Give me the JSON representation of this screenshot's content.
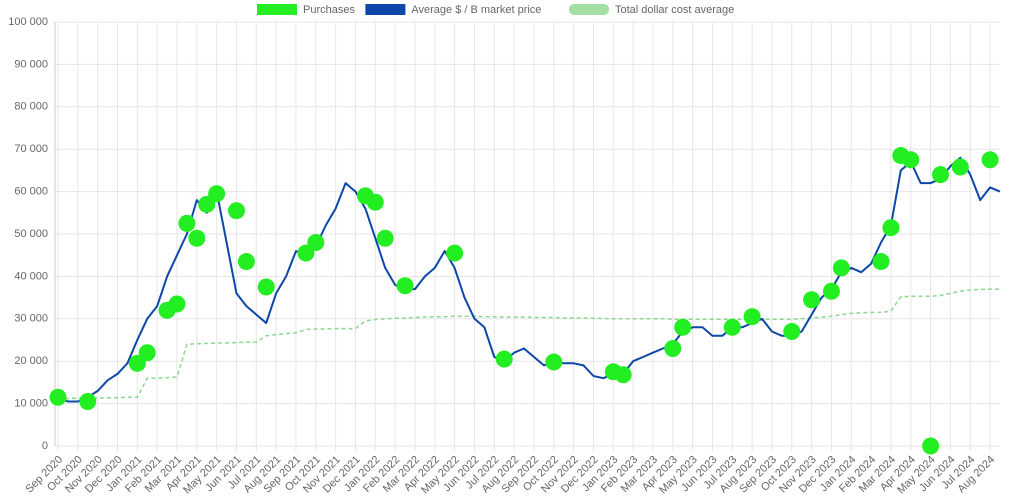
{
  "chart_data": {
    "type": "line",
    "categories": [
      "Sep 2020",
      null,
      "Oct 2020",
      null,
      "Nov 2020",
      null,
      "Dec 2020",
      null,
      "Jan 2021",
      null,
      "Feb 2021",
      null,
      "Mar 2021",
      null,
      "Apr 2021",
      null,
      "May 2021",
      null,
      "Jun 2021",
      null,
      "Jul 2021",
      null,
      "Aug 2021",
      null,
      "Sep 2021",
      null,
      "Oct 2021",
      null,
      "Nov 2021",
      null,
      "Dec 2021",
      null,
      "Jan 2022",
      null,
      "Feb 2022",
      null,
      "Mar 2022",
      null,
      "Apr 2022",
      null,
      "May 2022",
      null,
      "Jun 2022",
      null,
      "Jul 2022",
      null,
      "Aug 2022",
      null,
      "Sep 2022",
      null,
      "Oct 2022",
      null,
      "Nov 2022",
      null,
      "Dec 2022",
      null,
      "Jan 2023",
      null,
      "Feb 2023",
      null,
      "Mar 2023",
      null,
      "Apr 2023",
      null,
      "May 2023",
      null,
      "Jun 2023",
      null,
      "Jul 2023",
      null,
      "Aug 2023",
      null,
      "Sep 2023",
      null,
      "Oct 2023",
      null,
      "Nov 2023",
      null,
      "Dec 2023",
      null,
      "Jan 2024",
      null,
      "Feb 2024",
      null,
      "Mar 2024",
      null,
      "Apr 2024",
      null,
      "May 2024",
      null,
      "Jun 2024",
      null,
      "Jul 2024",
      null,
      "Aug 2024",
      null
    ],
    "series": [
      {
        "name": "Purchases",
        "type": "scatter",
        "color": "#22ee22",
        "values": [
          11500,
          null,
          null,
          10500,
          null,
          null,
          null,
          null,
          19500,
          22000,
          null,
          32000,
          33500,
          52500,
          49000,
          57000,
          59500,
          null,
          55500,
          43500,
          null,
          37500,
          null,
          null,
          null,
          45500,
          48000,
          null,
          null,
          null,
          null,
          59000,
          57500,
          49000,
          null,
          37800,
          null,
          null,
          null,
          null,
          45500,
          null,
          null,
          null,
          null,
          20500,
          null,
          null,
          null,
          null,
          19800,
          null,
          null,
          null,
          null,
          null,
          17500,
          16800,
          null,
          null,
          null,
          null,
          23000,
          28000,
          null,
          null,
          null,
          null,
          28000,
          null,
          30500,
          null,
          null,
          null,
          27000,
          null,
          34500,
          null,
          36500,
          42000,
          null,
          null,
          null,
          43500,
          51500,
          68500,
          67500,
          null,
          0,
          64000,
          null,
          65800,
          null,
          null,
          67500,
          null
        ]
      },
      {
        "name": "Average $ / B market price",
        "type": "line",
        "color": "#0d47a8",
        "values": [
          11500,
          10500,
          10500,
          11500,
          13000,
          15500,
          17000,
          19500,
          25000,
          30000,
          33000,
          40000,
          45000,
          50000,
          58000,
          55000,
          60000,
          48000,
          36000,
          33000,
          31000,
          29000,
          36000,
          40000,
          46000,
          45000,
          47000,
          52000,
          56000,
          62000,
          60000,
          56000,
          49000,
          42000,
          38000,
          37000,
          37000,
          40000,
          42000,
          46000,
          42000,
          35000,
          30000,
          28000,
          21000,
          20000,
          22000,
          23000,
          21000,
          19000,
          20000,
          19500,
          19500,
          19000,
          16500,
          16000,
          17000,
          17000,
          20000,
          21000,
          22000,
          23000,
          24000,
          27000,
          28000,
          28000,
          26000,
          26000,
          28000,
          28000,
          29000,
          30000,
          27000,
          26000,
          26000,
          27000,
          31000,
          35000,
          37000,
          41000,
          42000,
          41000,
          43000,
          48000,
          52000,
          65000,
          67000,
          62000,
          62000,
          63000,
          66000,
          68000,
          64000,
          58000,
          61000,
          60000
        ]
      },
      {
        "name": "Total dollar cost average",
        "type": "line",
        "dashed": true,
        "color": "#8fd68f",
        "values": [
          11200,
          11200,
          11300,
          11300,
          11300,
          11400,
          11400,
          11500,
          11500,
          16000,
          16000,
          16100,
          16300,
          24000,
          24100,
          24200,
          24300,
          24300,
          24400,
          24500,
          24500,
          26000,
          26300,
          26500,
          26700,
          27500,
          27600,
          27600,
          27700,
          27700,
          27700,
          29500,
          29800,
          30000,
          30100,
          30200,
          30300,
          30400,
          30500,
          30500,
          30600,
          30600,
          30600,
          30500,
          30500,
          30400,
          30400,
          30400,
          30300,
          30300,
          30300,
          30200,
          30200,
          30200,
          30100,
          30100,
          30000,
          30000,
          30000,
          30000,
          30000,
          30000,
          29900,
          29900,
          29900,
          29900,
          29900,
          29900,
          29900,
          29900,
          29900,
          29900,
          29900,
          29900,
          29900,
          30000,
          30200,
          30400,
          30600,
          31000,
          31300,
          31400,
          31500,
          31500,
          31800,
          35200,
          35300,
          35300,
          35300,
          35500,
          36000,
          36500,
          36800,
          36900,
          37000,
          37000
        ]
      }
    ],
    "ylim": [
      0,
      100000
    ],
    "yticks": [
      0,
      {
        "value": 10000,
        "label": "10 000"
      },
      {
        "value": 20000,
        "label": "20 000"
      },
      {
        "value": 30000,
        "label": "30 000"
      },
      {
        "value": 40000,
        "label": "40 000"
      },
      {
        "value": 50000,
        "label": "50 000"
      },
      {
        "value": 60000,
        "label": "60 000"
      },
      {
        "value": 70000,
        "label": "70 000"
      },
      {
        "value": 80000,
        "label": "80 000"
      },
      {
        "value": 90000,
        "label": "90 000"
      },
      {
        "value": 100000,
        "label": "100 000"
      }
    ],
    "grid": true,
    "legend": "top"
  }
}
